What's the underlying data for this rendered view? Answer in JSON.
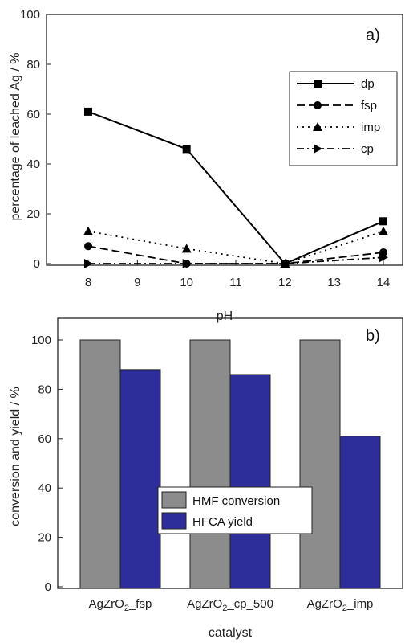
{
  "chart_data": [
    {
      "type": "line",
      "panel_label": "a)",
      "xlabel": "pH",
      "ylabel": "percentage of leached Ag / %",
      "xlim": [
        7.5,
        14.5
      ],
      "ylim": [
        0,
        100
      ],
      "xticks": [
        8,
        9,
        10,
        11,
        12,
        13,
        14
      ],
      "yticks": [
        0,
        20,
        40,
        60,
        80,
        100
      ],
      "legend_position": "top-right",
      "grid": false,
      "series": [
        {
          "name": "dp",
          "marker": "square",
          "dash": "solid",
          "x": [
            8,
            10,
            12,
            14
          ],
          "values": [
            61,
            46,
            0,
            17
          ]
        },
        {
          "name": "fsp",
          "marker": "circle",
          "dash": "dashed",
          "x": [
            8,
            10,
            12,
            14
          ],
          "values": [
            7,
            0,
            0,
            4.5
          ]
        },
        {
          "name": "imp",
          "marker": "triangle",
          "dash": "dotted",
          "x": [
            8,
            10,
            12,
            14
          ],
          "values": [
            13,
            6,
            0,
            13
          ]
        },
        {
          "name": "cp",
          "marker": "triangle-right",
          "dash": "dashdot",
          "x": [
            8,
            10,
            12,
            14
          ],
          "values": [
            0,
            0,
            0,
            2.5
          ]
        }
      ]
    },
    {
      "type": "bar",
      "panel_label": "b)",
      "xlabel": "catalyst",
      "ylabel": "conversion and yield / %",
      "ylim": [
        0,
        100
      ],
      "yticks": [
        0,
        20,
        40,
        60,
        80,
        100
      ],
      "legend_position": "center-left",
      "grid": false,
      "categories": [
        {
          "base": "AgZrO",
          "sub": "2",
          "suffix": "_fsp"
        },
        {
          "base": "AgZrO",
          "sub": "2",
          "suffix": "_cp_500"
        },
        {
          "base": "AgZrO",
          "sub": "2",
          "suffix": "_imp"
        }
      ],
      "series": [
        {
          "name": "HMF conversion",
          "color": "#8c8c8c",
          "values": [
            100,
            100,
            100
          ]
        },
        {
          "name": "HFCA yield",
          "color": "#2e2e9a",
          "values": [
            88,
            86,
            61
          ]
        }
      ]
    }
  ]
}
